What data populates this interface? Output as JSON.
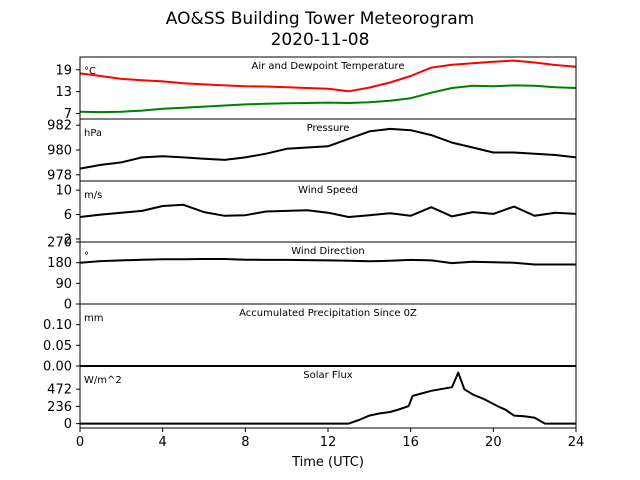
{
  "chart_data": {
    "type": "line",
    "title": "AO&SS Building Tower Meteorogram",
    "subtitle": "2020-11-08",
    "xlabel": "Time (UTC)",
    "xlim": [
      0,
      24
    ],
    "xticks": [
      0,
      4,
      8,
      12,
      16,
      20,
      24
    ],
    "panels": [
      {
        "label": "Air and Dewpoint Temperature",
        "unit": "°C",
        "ylim": [
          5.5,
          22.5
        ],
        "yticks": [
          7,
          13,
          19
        ],
        "series": [
          {
            "color": "#ff0000",
            "x": [
              0,
              1,
              2,
              3,
              4,
              5,
              6,
              7,
              8,
              9,
              10,
              11,
              12,
              13,
              14,
              15,
              16,
              17,
              18,
              19,
              20,
              21,
              22,
              23,
              24
            ],
            "y": [
              18,
              17.3,
              16.5,
              16.1,
              15.8,
              15.3,
              15,
              14.7,
              14.5,
              14.4,
              14.2,
              14,
              13.8,
              13.1,
              14.1,
              15.5,
              17.3,
              19.6,
              20.4,
              20.8,
              21.2,
              21.5,
              21,
              20.3,
              19.8
            ]
          },
          {
            "color": "#008000",
            "x": [
              0,
              1,
              2,
              3,
              4,
              5,
              6,
              7,
              8,
              9,
              10,
              11,
              12,
              13,
              14,
              15,
              16,
              17,
              18,
              19,
              20,
              21,
              22,
              23,
              24
            ],
            "y": [
              7.5,
              7.4,
              7.5,
              7.8,
              8.3,
              8.6,
              8.9,
              9.2,
              9.5,
              9.7,
              9.8,
              9.9,
              10,
              9.9,
              10.1,
              10.5,
              11.2,
              12.7,
              14,
              14.6,
              14.5,
              14.7,
              14.6,
              14.2,
              14
            ]
          }
        ]
      },
      {
        "label": "Pressure",
        "unit": "hPa",
        "ylim": [
          977.5,
          982.5
        ],
        "yticks": [
          978,
          980,
          982
        ],
        "series": [
          {
            "color": "#000000",
            "x": [
              0,
              1,
              2,
              3,
              4,
              5,
              6,
              7,
              8,
              9,
              10,
              11,
              12,
              13,
              14,
              15,
              16,
              17,
              18,
              19,
              20,
              21,
              22,
              23,
              24
            ],
            "y": [
              978.5,
              978.8,
              979,
              979.4,
              979.5,
              979.4,
              979.3,
              979.2,
              979.4,
              979.7,
              980.1,
              980.2,
              980.3,
              980.9,
              981.5,
              981.7,
              981.6,
              981.2,
              980.6,
              980.2,
              979.8,
              979.8,
              979.7,
              979.6,
              979.4
            ]
          }
        ]
      },
      {
        "label": "Wind Speed",
        "unit": "m/s",
        "ylim": [
          1.5,
          11.5
        ],
        "yticks": [
          2,
          6,
          10
        ],
        "series": [
          {
            "color": "#000000",
            "x": [
              0,
              1,
              2,
              3,
              4,
              5,
              6,
              7,
              8,
              9,
              10,
              11,
              12,
              13,
              14,
              15,
              16,
              17,
              18,
              19,
              20,
              21,
              22,
              23,
              24
            ],
            "y": [
              5.6,
              6,
              6.3,
              6.6,
              7.4,
              7.6,
              6.4,
              5.8,
              5.9,
              6.5,
              6.6,
              6.7,
              6.3,
              5.6,
              5.9,
              6.2,
              5.8,
              7.2,
              5.7,
              6.4,
              6.1,
              7.3,
              5.8,
              6.3,
              6.1
            ]
          }
        ]
      },
      {
        "label": "Wind Direction",
        "unit": "°",
        "ylim": [
          0,
          270
        ],
        "yticks": [
          0,
          90,
          180,
          270
        ],
        "series": [
          {
            "color": "#000000",
            "x": [
              0,
              1,
              2,
              3,
              4,
              5,
              6,
              7,
              8,
              9,
              10,
              11,
              12,
              13,
              14,
              15,
              16,
              17,
              18,
              19,
              20,
              21,
              22,
              23,
              24
            ],
            "y": [
              180,
              187,
              190,
              193,
              195,
              195,
              196,
              196,
              193,
              192,
              192,
              191,
              190,
              188,
              186,
              188,
              192,
              190,
              178,
              184,
              182,
              180,
              172,
              172,
              172
            ]
          }
        ]
      },
      {
        "label": "Accumulated Precipitation Since 0Z",
        "unit": "mm",
        "ylim": [
          0,
          0.15
        ],
        "yticks": [
          0.0,
          0.05,
          0.1
        ],
        "ytick_labels": [
          "0.00",
          "0.05",
          "0.10"
        ],
        "series": [
          {
            "color": "#000000",
            "x": [
              0,
              24
            ],
            "y": [
              0,
              0
            ]
          }
        ]
      },
      {
        "label": "Solar Flux",
        "unit": "W/m^2",
        "ylim": [
          -60,
          790
        ],
        "yticks": [
          0,
          236,
          472
        ],
        "series": [
          {
            "color": "#000000",
            "x": [
              0,
              13,
              13.5,
              14,
              14.5,
              15,
              15.5,
              15.9,
              16.1,
              17,
              18,
              18.3,
              18.6,
              19,
              19.6,
              20.2,
              20.6,
              21,
              21.5,
              22,
              22.5,
              23,
              24
            ],
            "y": [
              0,
              0,
              50,
              110,
              140,
              160,
              200,
              240,
              380,
              450,
              500,
              700,
              470,
              400,
              330,
              240,
              190,
              110,
              100,
              80,
              0,
              0,
              0
            ]
          }
        ]
      }
    ]
  }
}
